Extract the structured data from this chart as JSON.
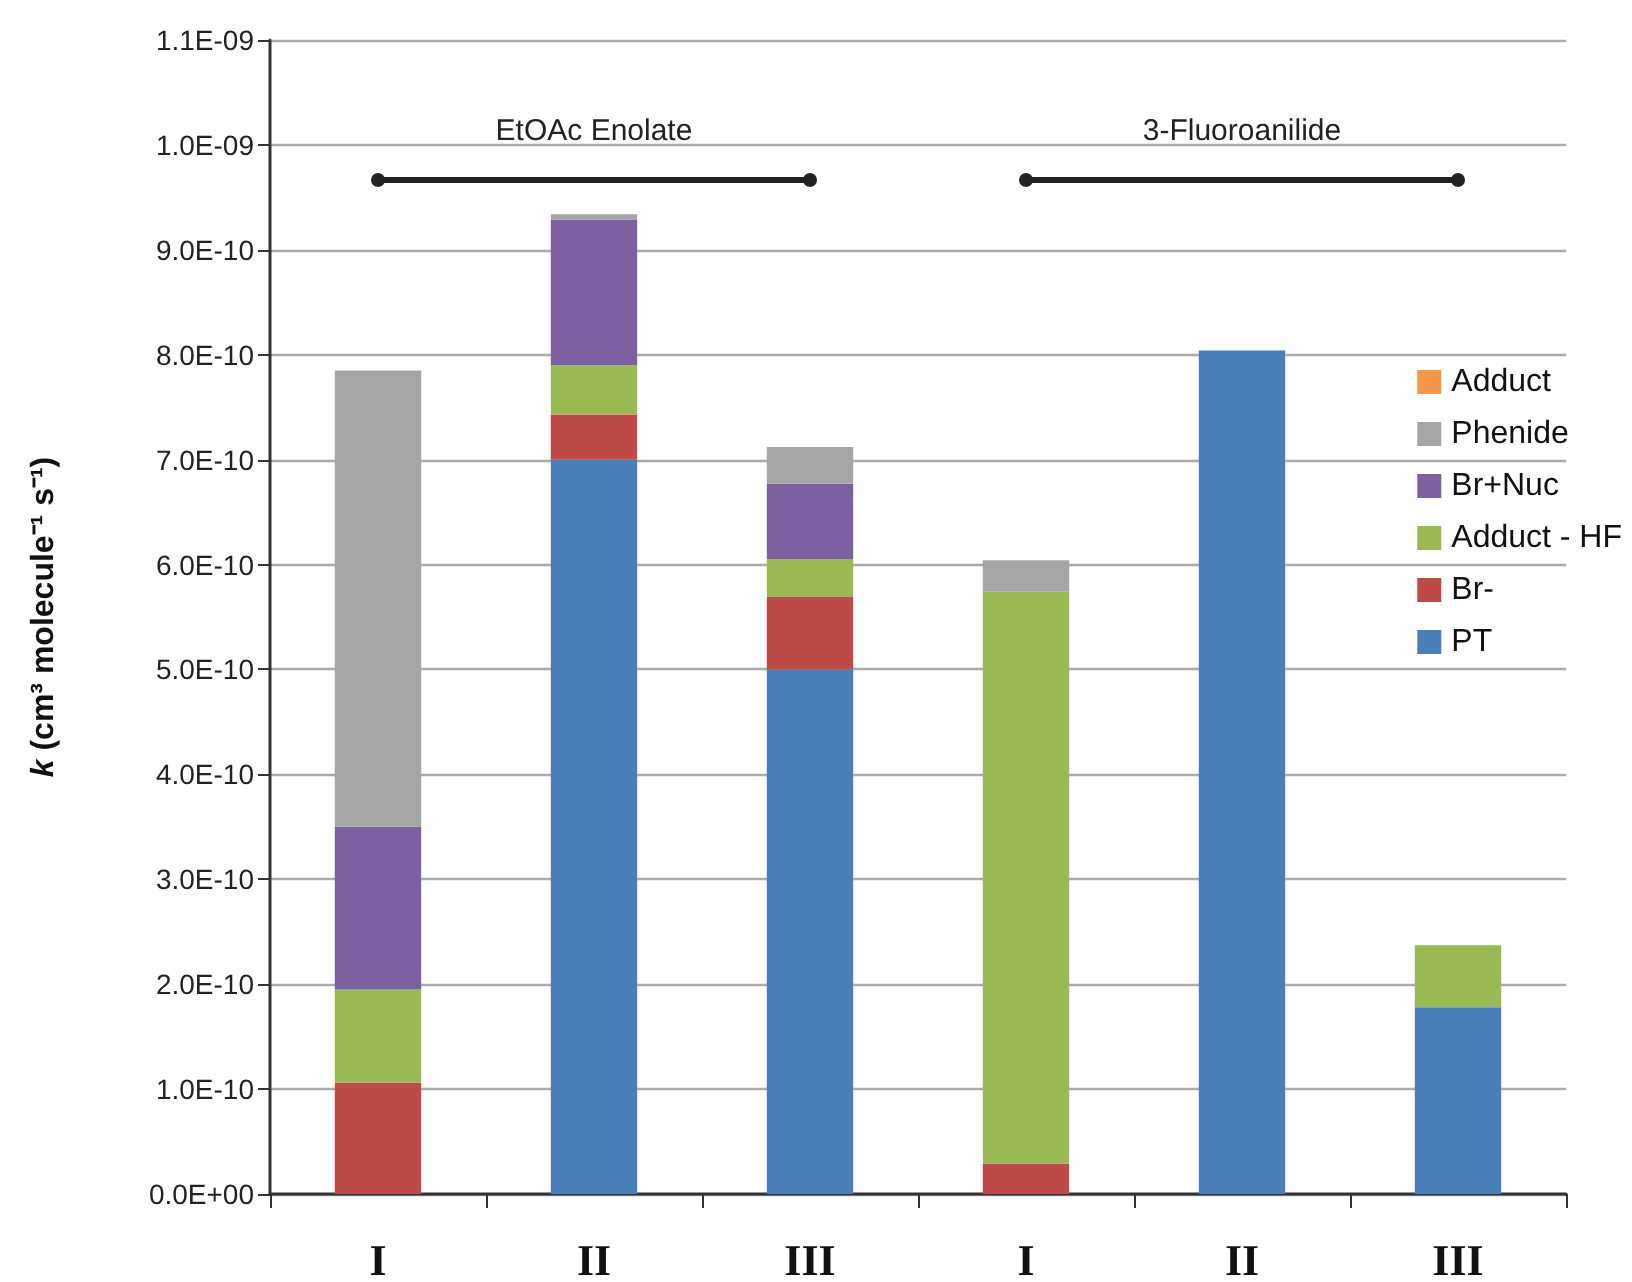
{
  "chart_data": {
    "type": "bar",
    "stacked": true,
    "ylabel": "k (cm³ molecule⁻¹ s⁻¹)",
    "categories": [
      "I",
      "II",
      "III",
      "I",
      "II",
      "III"
    ],
    "series": [
      {
        "name": "PT",
        "color": "#4a7ebb",
        "values": [
          null,
          7e-10,
          5e-10,
          null,
          8.04e-10,
          1.78e-10
        ]
      },
      {
        "name": "Br-",
        "color": "#be4b48",
        "values": [
          1.06e-10,
          4.3e-11,
          6.9e-11,
          2.9e-11,
          null,
          null
        ]
      },
      {
        "name": "Adduct - HF",
        "color": "#98b954",
        "values": [
          8.9e-11,
          4.7e-11,
          3.6e-11,
          5.45e-10,
          null,
          5.9e-11
        ]
      },
      {
        "name": "Br+Nuc",
        "color": "#7d60a0",
        "values": [
          1.55e-10,
          1.39e-10,
          7.2e-11,
          null,
          null,
          null
        ]
      },
      {
        "name": "Phenide",
        "color": "#a5a5a5",
        "values": [
          4.35e-10,
          5e-12,
          3.5e-11,
          3e-11,
          null,
          null
        ]
      },
      {
        "name": "Adduct",
        "color": "#f79646",
        "values": [
          null,
          null,
          null,
          null,
          null,
          null
        ]
      }
    ],
    "ylim": [
      0,
      1.1e-09
    ],
    "yticks": [
      {
        "value": 0,
        "label": "0.0E+00"
      },
      {
        "value": 1e-10,
        "label": "1.0E-10"
      },
      {
        "value": 2e-10,
        "label": "2.0E-10"
      },
      {
        "value": 3e-10,
        "label": "3.0E-10"
      },
      {
        "value": 4e-10,
        "label": "4.0E-10"
      },
      {
        "value": 5e-10,
        "label": "5.0E-10"
      },
      {
        "value": 6e-10,
        "label": "6.0E-10"
      },
      {
        "value": 7e-10,
        "label": "7.0E-10"
      },
      {
        "value": 8e-10,
        "label": "8.0E-10"
      },
      {
        "value": 9e-10,
        "label": "9.0E-10"
      },
      {
        "value": 1e-09,
        "label": "1.0E-09"
      },
      {
        "value": 1.1e-09,
        "label": "1.1E-09"
      }
    ],
    "annotations": [
      "EtOAc Enolate",
      "3-Fluoroanilide"
    ],
    "grid": "y",
    "legend": "right"
  }
}
